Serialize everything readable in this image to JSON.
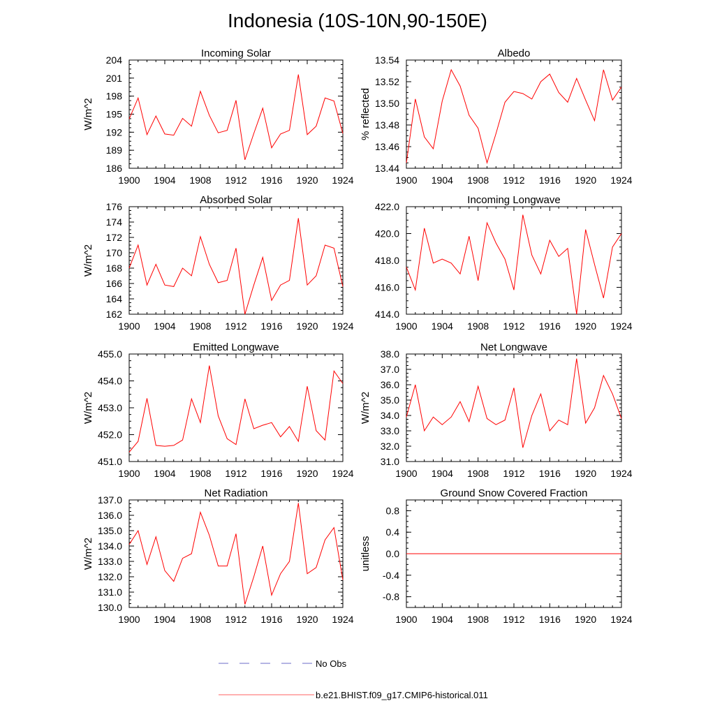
{
  "figure": {
    "title": "Indonesia (10S-10N,90-150E)"
  },
  "legend": [
    {
      "label": "No Obs",
      "color": "#6b6bc8",
      "dash": true
    },
    {
      "label": "b.e21.BHIST.f09_g17.CMIP6-historical.011",
      "color": "#ff6060",
      "dash": false
    }
  ],
  "chart_data": [
    {
      "type": "line",
      "title": "Incoming Solar",
      "ylabel": "W/m^2",
      "xlim": [
        1900,
        1924
      ],
      "xticks": [
        "1900",
        "1904",
        "1908",
        "1912",
        "1916",
        "1920",
        "1924"
      ],
      "ylim": [
        186,
        204
      ],
      "yticks": [
        "186",
        "189",
        "192",
        "195",
        "198",
        "201",
        "204"
      ],
      "series": [
        {
          "color": "#ff0000",
          "x": [
            1900,
            1901,
            1902,
            1903,
            1904,
            1905,
            1906,
            1907,
            1908,
            1909,
            1910,
            1911,
            1912,
            1913,
            1914,
            1915,
            1916,
            1917,
            1918,
            1919,
            1920,
            1921,
            1922,
            1923,
            1924
          ],
          "values": [
            194.2,
            197.7,
            191.6,
            194.7,
            191.7,
            191.5,
            194.3,
            193.0,
            198.8,
            194.8,
            191.9,
            192.3,
            197.3,
            187.4,
            191.8,
            196.0,
            189.4,
            191.7,
            192.3,
            201.6,
            191.6,
            193.0,
            197.7,
            197.2,
            191.8
          ]
        }
      ]
    },
    {
      "type": "line",
      "title": "Albedo",
      "ylabel": "% reflected",
      "xlim": [
        1900,
        1924
      ],
      "xticks": [
        "1900",
        "1904",
        "1908",
        "1912",
        "1916",
        "1920",
        "1924"
      ],
      "ylim": [
        13.44,
        13.54
      ],
      "yticks": [
        "13.44",
        "13.46",
        "13.48",
        "13.50",
        "13.52",
        "13.54"
      ],
      "series": [
        {
          "color": "#ff0000",
          "x": [
            1900,
            1901,
            1902,
            1903,
            1904,
            1905,
            1906,
            1907,
            1908,
            1909,
            1910,
            1911,
            1912,
            1913,
            1914,
            1915,
            1916,
            1917,
            1918,
            1919,
            1920,
            1921,
            1922,
            1923,
            1924
          ],
          "values": [
            13.445,
            13.504,
            13.469,
            13.458,
            13.502,
            13.531,
            13.516,
            13.489,
            13.477,
            13.445,
            13.472,
            13.501,
            13.511,
            13.509,
            13.504,
            13.52,
            13.527,
            13.51,
            13.501,
            13.523,
            13.503,
            13.484,
            13.531,
            13.503,
            13.515
          ]
        }
      ]
    },
    {
      "type": "line",
      "title": "Absorbed Solar",
      "ylabel": "W/m^2",
      "xlim": [
        1900,
        1924
      ],
      "xticks": [
        "1900",
        "1904",
        "1908",
        "1912",
        "1916",
        "1920",
        "1924"
      ],
      "ylim": [
        162,
        176
      ],
      "yticks": [
        "162",
        "164",
        "166",
        "168",
        "170",
        "172",
        "174",
        "176"
      ],
      "series": [
        {
          "color": "#ff0000",
          "x": [
            1900,
            1901,
            1902,
            1903,
            1904,
            1905,
            1906,
            1907,
            1908,
            1909,
            1910,
            1911,
            1912,
            1913,
            1914,
            1915,
            1916,
            1917,
            1918,
            1919,
            1920,
            1921,
            1922,
            1923,
            1924
          ],
          "values": [
            168.0,
            171.0,
            165.8,
            168.5,
            165.8,
            165.6,
            168.0,
            167.0,
            172.1,
            168.5,
            166.1,
            166.4,
            170.6,
            162.0,
            165.8,
            169.4,
            163.8,
            165.8,
            166.4,
            174.5,
            165.8,
            167.0,
            171.0,
            170.6,
            165.6
          ]
        }
      ]
    },
    {
      "type": "line",
      "title": "Incoming Longwave",
      "ylabel": "",
      "xlim": [
        1900,
        1924
      ],
      "xticks": [
        "1900",
        "1904",
        "1908",
        "1912",
        "1916",
        "1920",
        "1924"
      ],
      "ylim": [
        414.0,
        422.0
      ],
      "yticks": [
        "414.0",
        "416.0",
        "418.0",
        "420.0",
        "422.0"
      ],
      "series": [
        {
          "color": "#ff0000",
          "x": [
            1900,
            1901,
            1902,
            1903,
            1904,
            1905,
            1906,
            1907,
            1908,
            1909,
            1910,
            1911,
            1912,
            1913,
            1914,
            1915,
            1916,
            1917,
            1918,
            1919,
            1920,
            1921,
            1922,
            1923,
            1924
          ],
          "values": [
            417.5,
            415.8,
            420.4,
            417.8,
            418.1,
            417.8,
            417.0,
            419.8,
            416.5,
            420.8,
            419.3,
            418.1,
            415.8,
            421.4,
            418.4,
            417.0,
            419.5,
            418.3,
            418.9,
            414.0,
            420.3,
            417.7,
            415.2,
            419.0,
            420.0
          ]
        }
      ]
    },
    {
      "type": "line",
      "title": "Emitted Longwave",
      "ylabel": "W/m^2",
      "xlim": [
        1900,
        1924
      ],
      "xticks": [
        "1900",
        "1904",
        "1908",
        "1912",
        "1916",
        "1920",
        "1924"
      ],
      "ylim": [
        451.0,
        455.0
      ],
      "yticks": [
        "451.0",
        "452.0",
        "453.0",
        "454.0",
        "455.0"
      ],
      "series": [
        {
          "color": "#ff0000",
          "x": [
            1900,
            1901,
            1902,
            1903,
            1904,
            1905,
            1906,
            1907,
            1908,
            1909,
            1910,
            1911,
            1912,
            1913,
            1914,
            1915,
            1916,
            1917,
            1918,
            1919,
            1920,
            1921,
            1922,
            1923,
            1924
          ],
          "values": [
            451.35,
            451.75,
            453.35,
            451.6,
            451.57,
            451.6,
            451.8,
            453.33,
            452.45,
            454.57,
            452.7,
            451.85,
            451.63,
            453.33,
            452.22,
            452.35,
            452.45,
            451.92,
            452.3,
            451.75,
            453.8,
            452.15,
            451.8,
            454.37,
            453.9
          ]
        }
      ]
    },
    {
      "type": "line",
      "title": "Net Longwave",
      "ylabel": "W/m^2",
      "xlim": [
        1900,
        1924
      ],
      "xticks": [
        "1900",
        "1904",
        "1908",
        "1912",
        "1916",
        "1920",
        "1924"
      ],
      "ylim": [
        31.0,
        38.0
      ],
      "yticks": [
        "31.0",
        "32.0",
        "33.0",
        "34.0",
        "35.0",
        "36.0",
        "37.0",
        "38.0"
      ],
      "series": [
        {
          "color": "#ff0000",
          "x": [
            1900,
            1901,
            1902,
            1903,
            1904,
            1905,
            1906,
            1907,
            1908,
            1909,
            1910,
            1911,
            1912,
            1913,
            1914,
            1915,
            1916,
            1917,
            1918,
            1919,
            1920,
            1921,
            1922,
            1923,
            1924
          ],
          "values": [
            33.9,
            36.0,
            33.0,
            33.9,
            33.4,
            33.9,
            34.9,
            33.6,
            35.9,
            33.8,
            33.4,
            33.7,
            35.8,
            31.9,
            34.0,
            35.4,
            33.0,
            33.7,
            33.4,
            37.7,
            33.5,
            34.5,
            36.6,
            35.4,
            33.8
          ]
        }
      ]
    },
    {
      "type": "line",
      "title": "Net Radiation",
      "ylabel": "W/m^2",
      "xlim": [
        1900,
        1924
      ],
      "xticks": [
        "1900",
        "1904",
        "1908",
        "1912",
        "1916",
        "1920",
        "1924"
      ],
      "ylim": [
        130.0,
        137.0
      ],
      "yticks": [
        "130.0",
        "131.0",
        "132.0",
        "133.0",
        "134.0",
        "135.0",
        "136.0",
        "137.0"
      ],
      "series": [
        {
          "color": "#ff0000",
          "x": [
            1900,
            1901,
            1902,
            1903,
            1904,
            1905,
            1906,
            1907,
            1908,
            1909,
            1910,
            1911,
            1912,
            1913,
            1914,
            1915,
            1916,
            1917,
            1918,
            1919,
            1920,
            1921,
            1922,
            1923,
            1924
          ],
          "values": [
            134.1,
            135.0,
            132.8,
            134.6,
            132.4,
            131.7,
            133.2,
            133.5,
            136.2,
            134.7,
            132.7,
            132.7,
            134.8,
            130.2,
            132.0,
            134.0,
            130.8,
            132.2,
            133.0,
            136.8,
            132.2,
            132.6,
            134.4,
            135.2,
            131.8
          ]
        }
      ]
    },
    {
      "type": "line",
      "title": "Ground Snow Covered Fraction",
      "ylabel": "unitless",
      "xlim": [
        1900,
        1924
      ],
      "xticks": [
        "1900",
        "1904",
        "1908",
        "1912",
        "1916",
        "1920",
        "1924"
      ],
      "ylim": [
        -1.0,
        1.0
      ],
      "yticks": [
        "-0.8",
        "-0.4",
        "0.0",
        "0.4",
        "0.8"
      ],
      "series": [
        {
          "color": "#ff0000",
          "x": [
            1900,
            1901,
            1902,
            1903,
            1904,
            1905,
            1906,
            1907,
            1908,
            1909,
            1910,
            1911,
            1912,
            1913,
            1914,
            1915,
            1916,
            1917,
            1918,
            1919,
            1920,
            1921,
            1922,
            1923,
            1924
          ],
          "values": [
            0,
            0,
            0,
            0,
            0,
            0,
            0,
            0,
            0,
            0,
            0,
            0,
            0,
            0,
            0,
            0,
            0,
            0,
            0,
            0,
            0,
            0,
            0,
            0,
            0
          ]
        }
      ]
    }
  ]
}
